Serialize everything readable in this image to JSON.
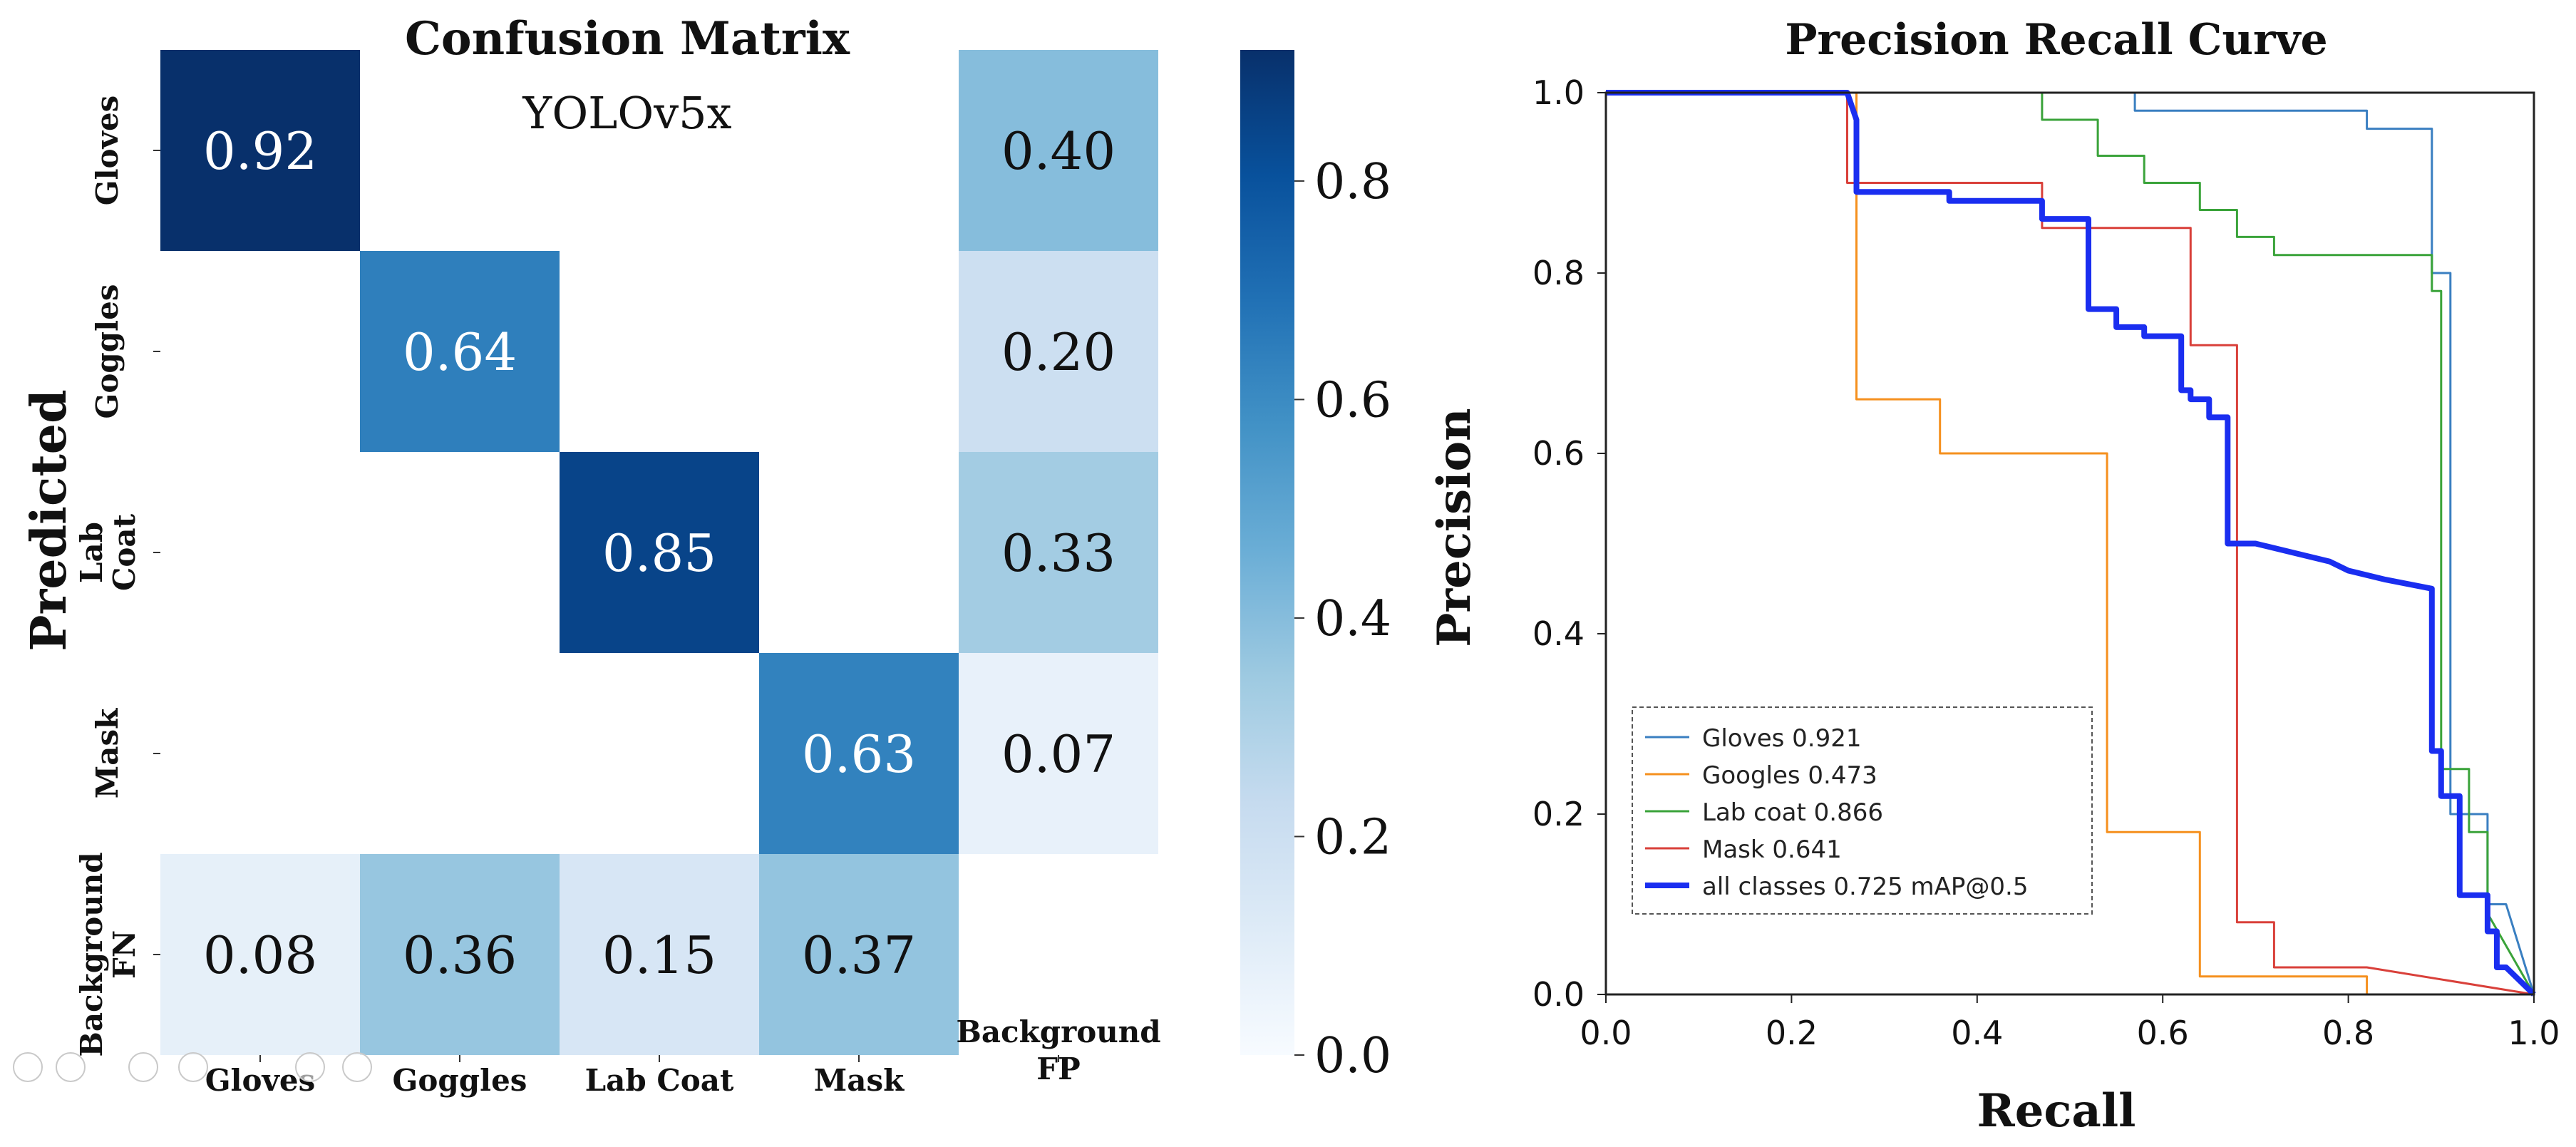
{
  "chart_data": [
    {
      "type": "heatmap",
      "title": "Confusion Matrix",
      "subtitle": "YOLOv5x",
      "ylabel": "Predicted",
      "xlabel": "",
      "x_categories": [
        "Gloves",
        "Goggles",
        "Lab Coat",
        "Mask",
        "Background FP"
      ],
      "y_categories": [
        "Gloves",
        "Goggles",
        "Lab Coat",
        "Mask",
        "Background FN"
      ],
      "cells": [
        {
          "row": 0,
          "col": 0,
          "value": 0.92,
          "label": "0.92"
        },
        {
          "row": 0,
          "col": 4,
          "value": 0.4,
          "label": "0.40"
        },
        {
          "row": 1,
          "col": 1,
          "value": 0.64,
          "label": "0.64"
        },
        {
          "row": 1,
          "col": 4,
          "value": 0.2,
          "label": "0.20"
        },
        {
          "row": 2,
          "col": 2,
          "value": 0.85,
          "label": "0.85"
        },
        {
          "row": 2,
          "col": 4,
          "value": 0.33,
          "label": "0.33"
        },
        {
          "row": 3,
          "col": 3,
          "value": 0.63,
          "label": "0.63"
        },
        {
          "row": 3,
          "col": 4,
          "value": 0.07,
          "label": "0.07"
        },
        {
          "row": 4,
          "col": 0,
          "value": 0.08,
          "label": "0.08"
        },
        {
          "row": 4,
          "col": 1,
          "value": 0.36,
          "label": "0.36"
        },
        {
          "row": 4,
          "col": 2,
          "value": 0.15,
          "label": "0.15"
        },
        {
          "row": 4,
          "col": 3,
          "value": 0.37,
          "label": "0.37"
        }
      ],
      "colorbar": {
        "min": 0.0,
        "max": 0.92,
        "ticks": [
          0.0,
          0.2,
          0.4,
          0.6,
          0.8
        ],
        "tick_labels": [
          "0.0",
          "0.2",
          "0.4",
          "0.6",
          "0.8"
        ],
        "colormap": "Blues"
      }
    },
    {
      "type": "line",
      "title": "Precision Recall Curve",
      "xlabel": "Recall",
      "ylabel": "Precision",
      "xlim": [
        0.0,
        1.0
      ],
      "ylim": [
        0.0,
        1.0
      ],
      "xticks": [
        "0.0",
        "0.2",
        "0.4",
        "0.6",
        "0.8",
        "1.0"
      ],
      "yticks": [
        "0.0",
        "0.2",
        "0.4",
        "0.6",
        "0.8",
        "1.0"
      ],
      "legend_position": "lower-left",
      "series": [
        {
          "name": "Gloves 0.921",
          "color": "#3a7fc1",
          "width": 3,
          "points": [
            [
              0,
              1
            ],
            [
              0.57,
              1
            ],
            [
              0.57,
              0.98
            ],
            [
              0.82,
              0.98
            ],
            [
              0.82,
              0.96
            ],
            [
              0.89,
              0.96
            ],
            [
              0.89,
              0.8
            ],
            [
              0.91,
              0.8
            ],
            [
              0.91,
              0.2
            ],
            [
              0.95,
              0.2
            ],
            [
              0.95,
              0.1
            ],
            [
              0.97,
              0.1
            ],
            [
              1,
              0
            ]
          ]
        },
        {
          "name": "Googles 0.473",
          "color": "#f5901e",
          "width": 3,
          "points": [
            [
              0,
              1
            ],
            [
              0.27,
              1
            ],
            [
              0.27,
              0.66
            ],
            [
              0.36,
              0.66
            ],
            [
              0.36,
              0.6
            ],
            [
              0.54,
              0.6
            ],
            [
              0.54,
              0.18
            ],
            [
              0.64,
              0.18
            ],
            [
              0.64,
              0.02
            ],
            [
              0.82,
              0.02
            ],
            [
              0.82,
              0.0
            ],
            [
              1,
              0
            ]
          ]
        },
        {
          "name": "Lab coat 0.866",
          "color": "#3aa33a",
          "width": 3,
          "points": [
            [
              0,
              1
            ],
            [
              0.47,
              1
            ],
            [
              0.47,
              0.97
            ],
            [
              0.53,
              0.97
            ],
            [
              0.53,
              0.93
            ],
            [
              0.58,
              0.93
            ],
            [
              0.58,
              0.9
            ],
            [
              0.64,
              0.9
            ],
            [
              0.64,
              0.87
            ],
            [
              0.68,
              0.87
            ],
            [
              0.68,
              0.84
            ],
            [
              0.72,
              0.84
            ],
            [
              0.72,
              0.82
            ],
            [
              0.89,
              0.82
            ],
            [
              0.89,
              0.78
            ],
            [
              0.9,
              0.78
            ],
            [
              0.9,
              0.25
            ],
            [
              0.93,
              0.25
            ],
            [
              0.93,
              0.18
            ],
            [
              0.95,
              0.18
            ],
            [
              0.95,
              0.09
            ],
            [
              1,
              0
            ]
          ]
        },
        {
          "name": "Mask 0.641",
          "color": "#d9403a",
          "width": 3,
          "points": [
            [
              0,
              1
            ],
            [
              0.26,
              1
            ],
            [
              0.26,
              0.9
            ],
            [
              0.47,
              0.9
            ],
            [
              0.47,
              0.85
            ],
            [
              0.63,
              0.85
            ],
            [
              0.63,
              0.72
            ],
            [
              0.68,
              0.72
            ],
            [
              0.68,
              0.08
            ],
            [
              0.72,
              0.08
            ],
            [
              0.72,
              0.03
            ],
            [
              0.82,
              0.03
            ],
            [
              1,
              0
            ]
          ]
        },
        {
          "name": "all classes 0.725 mAP@0.5",
          "color": "#1a2ef0",
          "width": 8,
          "points": [
            [
              0,
              1
            ],
            [
              0.26,
              1
            ],
            [
              0.27,
              0.97
            ],
            [
              0.27,
              0.89
            ],
            [
              0.37,
              0.89
            ],
            [
              0.37,
              0.88
            ],
            [
              0.47,
              0.88
            ],
            [
              0.47,
              0.86
            ],
            [
              0.52,
              0.86
            ],
            [
              0.52,
              0.76
            ],
            [
              0.55,
              0.76
            ],
            [
              0.55,
              0.74
            ],
            [
              0.58,
              0.74
            ],
            [
              0.58,
              0.73
            ],
            [
              0.62,
              0.73
            ],
            [
              0.62,
              0.67
            ],
            [
              0.63,
              0.67
            ],
            [
              0.63,
              0.66
            ],
            [
              0.65,
              0.66
            ],
            [
              0.65,
              0.64
            ],
            [
              0.67,
              0.64
            ],
            [
              0.67,
              0.5
            ],
            [
              0.7,
              0.5
            ],
            [
              0.74,
              0.49
            ],
            [
              0.78,
              0.48
            ],
            [
              0.8,
              0.47
            ],
            [
              0.84,
              0.46
            ],
            [
              0.89,
              0.45
            ],
            [
              0.89,
              0.27
            ],
            [
              0.9,
              0.27
            ],
            [
              0.9,
              0.22
            ],
            [
              0.92,
              0.22
            ],
            [
              0.92,
              0.11
            ],
            [
              0.95,
              0.11
            ],
            [
              0.95,
              0.07
            ],
            [
              0.96,
              0.07
            ],
            [
              0.96,
              0.03
            ],
            [
              0.97,
              0.03
            ],
            [
              1,
              0
            ]
          ]
        }
      ]
    }
  ]
}
